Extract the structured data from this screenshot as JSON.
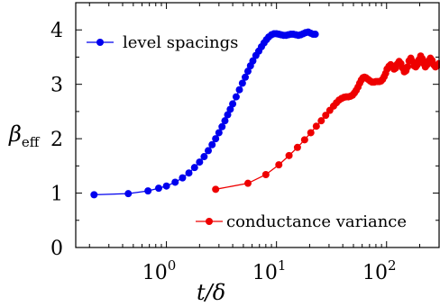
{
  "chart_data": {
    "type": "line",
    "xscale": "log",
    "xlim": [
      0.15,
      300
    ],
    "ylim": [
      0,
      4.5
    ],
    "grid": false,
    "xlabel": "t/δ",
    "ylabel": "β",
    "ylabel_sub": "eff",
    "x_ticks": [
      {
        "value": 1,
        "base": "10",
        "exp": "0"
      },
      {
        "value": 10,
        "base": "10",
        "exp": "1"
      },
      {
        "value": 100,
        "base": "10",
        "exp": "2"
      }
    ],
    "y_ticks": [
      "0",
      "1",
      "2",
      "3",
      "4"
    ],
    "series": [
      {
        "name": "level spacings",
        "color": "#0000ee",
        "x": [
          0.22,
          0.45,
          0.68,
          0.85,
          1.0,
          1.2,
          1.4,
          1.6,
          1.8,
          2.0,
          2.2,
          2.4,
          2.6,
          2.8,
          3.0,
          3.2,
          3.4,
          3.6,
          3.8,
          4.0,
          4.3,
          4.6,
          4.9,
          5.2,
          5.5,
          5.8,
          6.1,
          6.5,
          6.9,
          7.3,
          7.7,
          8.1,
          8.5,
          9.0,
          9.5,
          10.0,
          10.5,
          11.0,
          11.6,
          12.2,
          12.8,
          13.5,
          14.2,
          15.0,
          15.8,
          16.6,
          17.5,
          18.4,
          19.4,
          20.4,
          21.5,
          22.5
        ],
        "values": [
          0.97,
          0.99,
          1.04,
          1.09,
          1.13,
          1.2,
          1.28,
          1.37,
          1.47,
          1.57,
          1.67,
          1.78,
          1.89,
          2.0,
          2.11,
          2.22,
          2.33,
          2.44,
          2.54,
          2.64,
          2.77,
          2.9,
          3.02,
          3.13,
          3.24,
          3.34,
          3.43,
          3.53,
          3.61,
          3.69,
          3.76,
          3.82,
          3.87,
          3.91,
          3.93,
          3.93,
          3.92,
          3.91,
          3.9,
          3.9,
          3.91,
          3.92,
          3.92,
          3.91,
          3.9,
          3.91,
          3.93,
          3.95,
          3.96,
          3.94,
          3.92,
          3.92
        ]
      },
      {
        "name": "conductance variance",
        "color": "#ee0000",
        "x": [
          2.8,
          5.5,
          8.0,
          10.5,
          13.0,
          15.5,
          18.0,
          20.5,
          23.0,
          25.5,
          28.0,
          30.5,
          33.0,
          35.0,
          37.0,
          39.0,
          41.0,
          43.0,
          45.0,
          47.0,
          49.0,
          51.0,
          53.0,
          55.0,
          57.0,
          59.0,
          61.0,
          63.0,
          65.0,
          68.0,
          71.0,
          74.0,
          77.0,
          80.0,
          83.0,
          86.0,
          89.0,
          92.0,
          95.0,
          98.0,
          101.0,
          105.0,
          109.0,
          113.0,
          117.0,
          121.0,
          125.0,
          130.0,
          135.0,
          140.0,
          145.0,
          150.0,
          155.0,
          160.0,
          166.0,
          172.0,
          178.0,
          184.0,
          190.0,
          197.0,
          204.0,
          211.0,
          218.0,
          225.0,
          233.0,
          241.0,
          250.0,
          259.0,
          268.0,
          278.0,
          288.0,
          298.0
        ],
        "values": [
          1.07,
          1.18,
          1.34,
          1.52,
          1.69,
          1.84,
          1.98,
          2.11,
          2.23,
          2.33,
          2.43,
          2.52,
          2.6,
          2.66,
          2.71,
          2.74,
          2.76,
          2.77,
          2.77,
          2.78,
          2.8,
          2.84,
          2.89,
          2.95,
          3.02,
          3.08,
          3.12,
          3.13,
          3.12,
          3.09,
          3.06,
          3.04,
          3.04,
          3.05,
          3.05,
          3.05,
          3.06,
          3.09,
          3.14,
          3.2,
          3.28,
          3.33,
          3.36,
          3.32,
          3.28,
          3.3,
          3.37,
          3.42,
          3.38,
          3.3,
          3.23,
          3.25,
          3.32,
          3.43,
          3.48,
          3.42,
          3.34,
          3.32,
          3.36,
          3.45,
          3.52,
          3.47,
          3.38,
          3.32,
          3.36,
          3.43,
          3.48,
          3.44,
          3.36,
          3.32,
          3.34,
          3.38
        ]
      }
    ]
  }
}
